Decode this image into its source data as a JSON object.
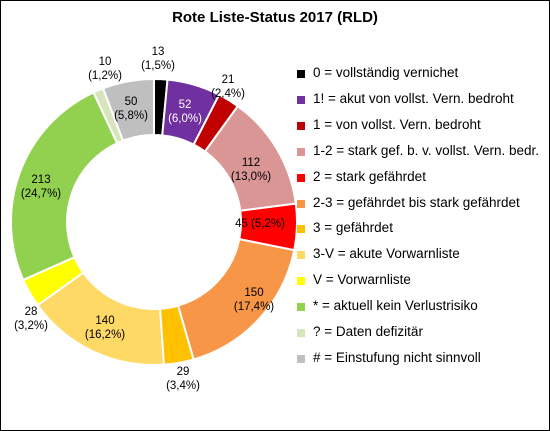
{
  "chart_data": {
    "type": "pie",
    "title": "Rote Liste-Status 2017 (RLD)",
    "donut": true,
    "legend_position": "right",
    "slices": [
      {
        "legend": "0 = vollständig vernichet",
        "value": 13,
        "percent": "1,5%",
        "color": "#000000"
      },
      {
        "legend": "1! = akut von vollst. Vern. bedroht",
        "value": 52,
        "percent": "6,0%",
        "color": "#7030a0"
      },
      {
        "legend": "1 = von vollst. Vern. bedroht",
        "value": 21,
        "percent": "2,4%",
        "color": "#c00000"
      },
      {
        "legend": "1-2 = stark gef. b. v. vollst. Vern. bedr.",
        "value": 112,
        "percent": "13,0%",
        "color": "#da9694"
      },
      {
        "legend": "2 = stark gefährdet",
        "value": 45,
        "percent": "5,2%",
        "color": "#ff0000"
      },
      {
        "legend": "2-3 = gefährdet bis stark gefährdet",
        "value": 150,
        "percent": "17,4%",
        "color": "#f79646"
      },
      {
        "legend": "3 = gefährdet",
        "value": 29,
        "percent": "3,4%",
        "color": "#ffc000"
      },
      {
        "legend": "3-V = akute Vorwarnliste",
        "value": 140,
        "percent": "16,2%",
        "color": "#ffd966"
      },
      {
        "legend": "V = Vorwarnliste",
        "value": 28,
        "percent": "3,2%",
        "color": "#ffff00"
      },
      {
        "legend": "* = aktuell kein Verlustrisiko",
        "value": 213,
        "percent": "24,7%",
        "color": "#92d050"
      },
      {
        "legend": "? = Daten defizitär",
        "value": 10,
        "percent": "1,2%",
        "color": "#d8e4bc"
      },
      {
        "legend": "# = Einstufung nicht sinnvoll",
        "value": 50,
        "percent": "5,8%",
        "color": "#bfbfbf"
      }
    ]
  }
}
